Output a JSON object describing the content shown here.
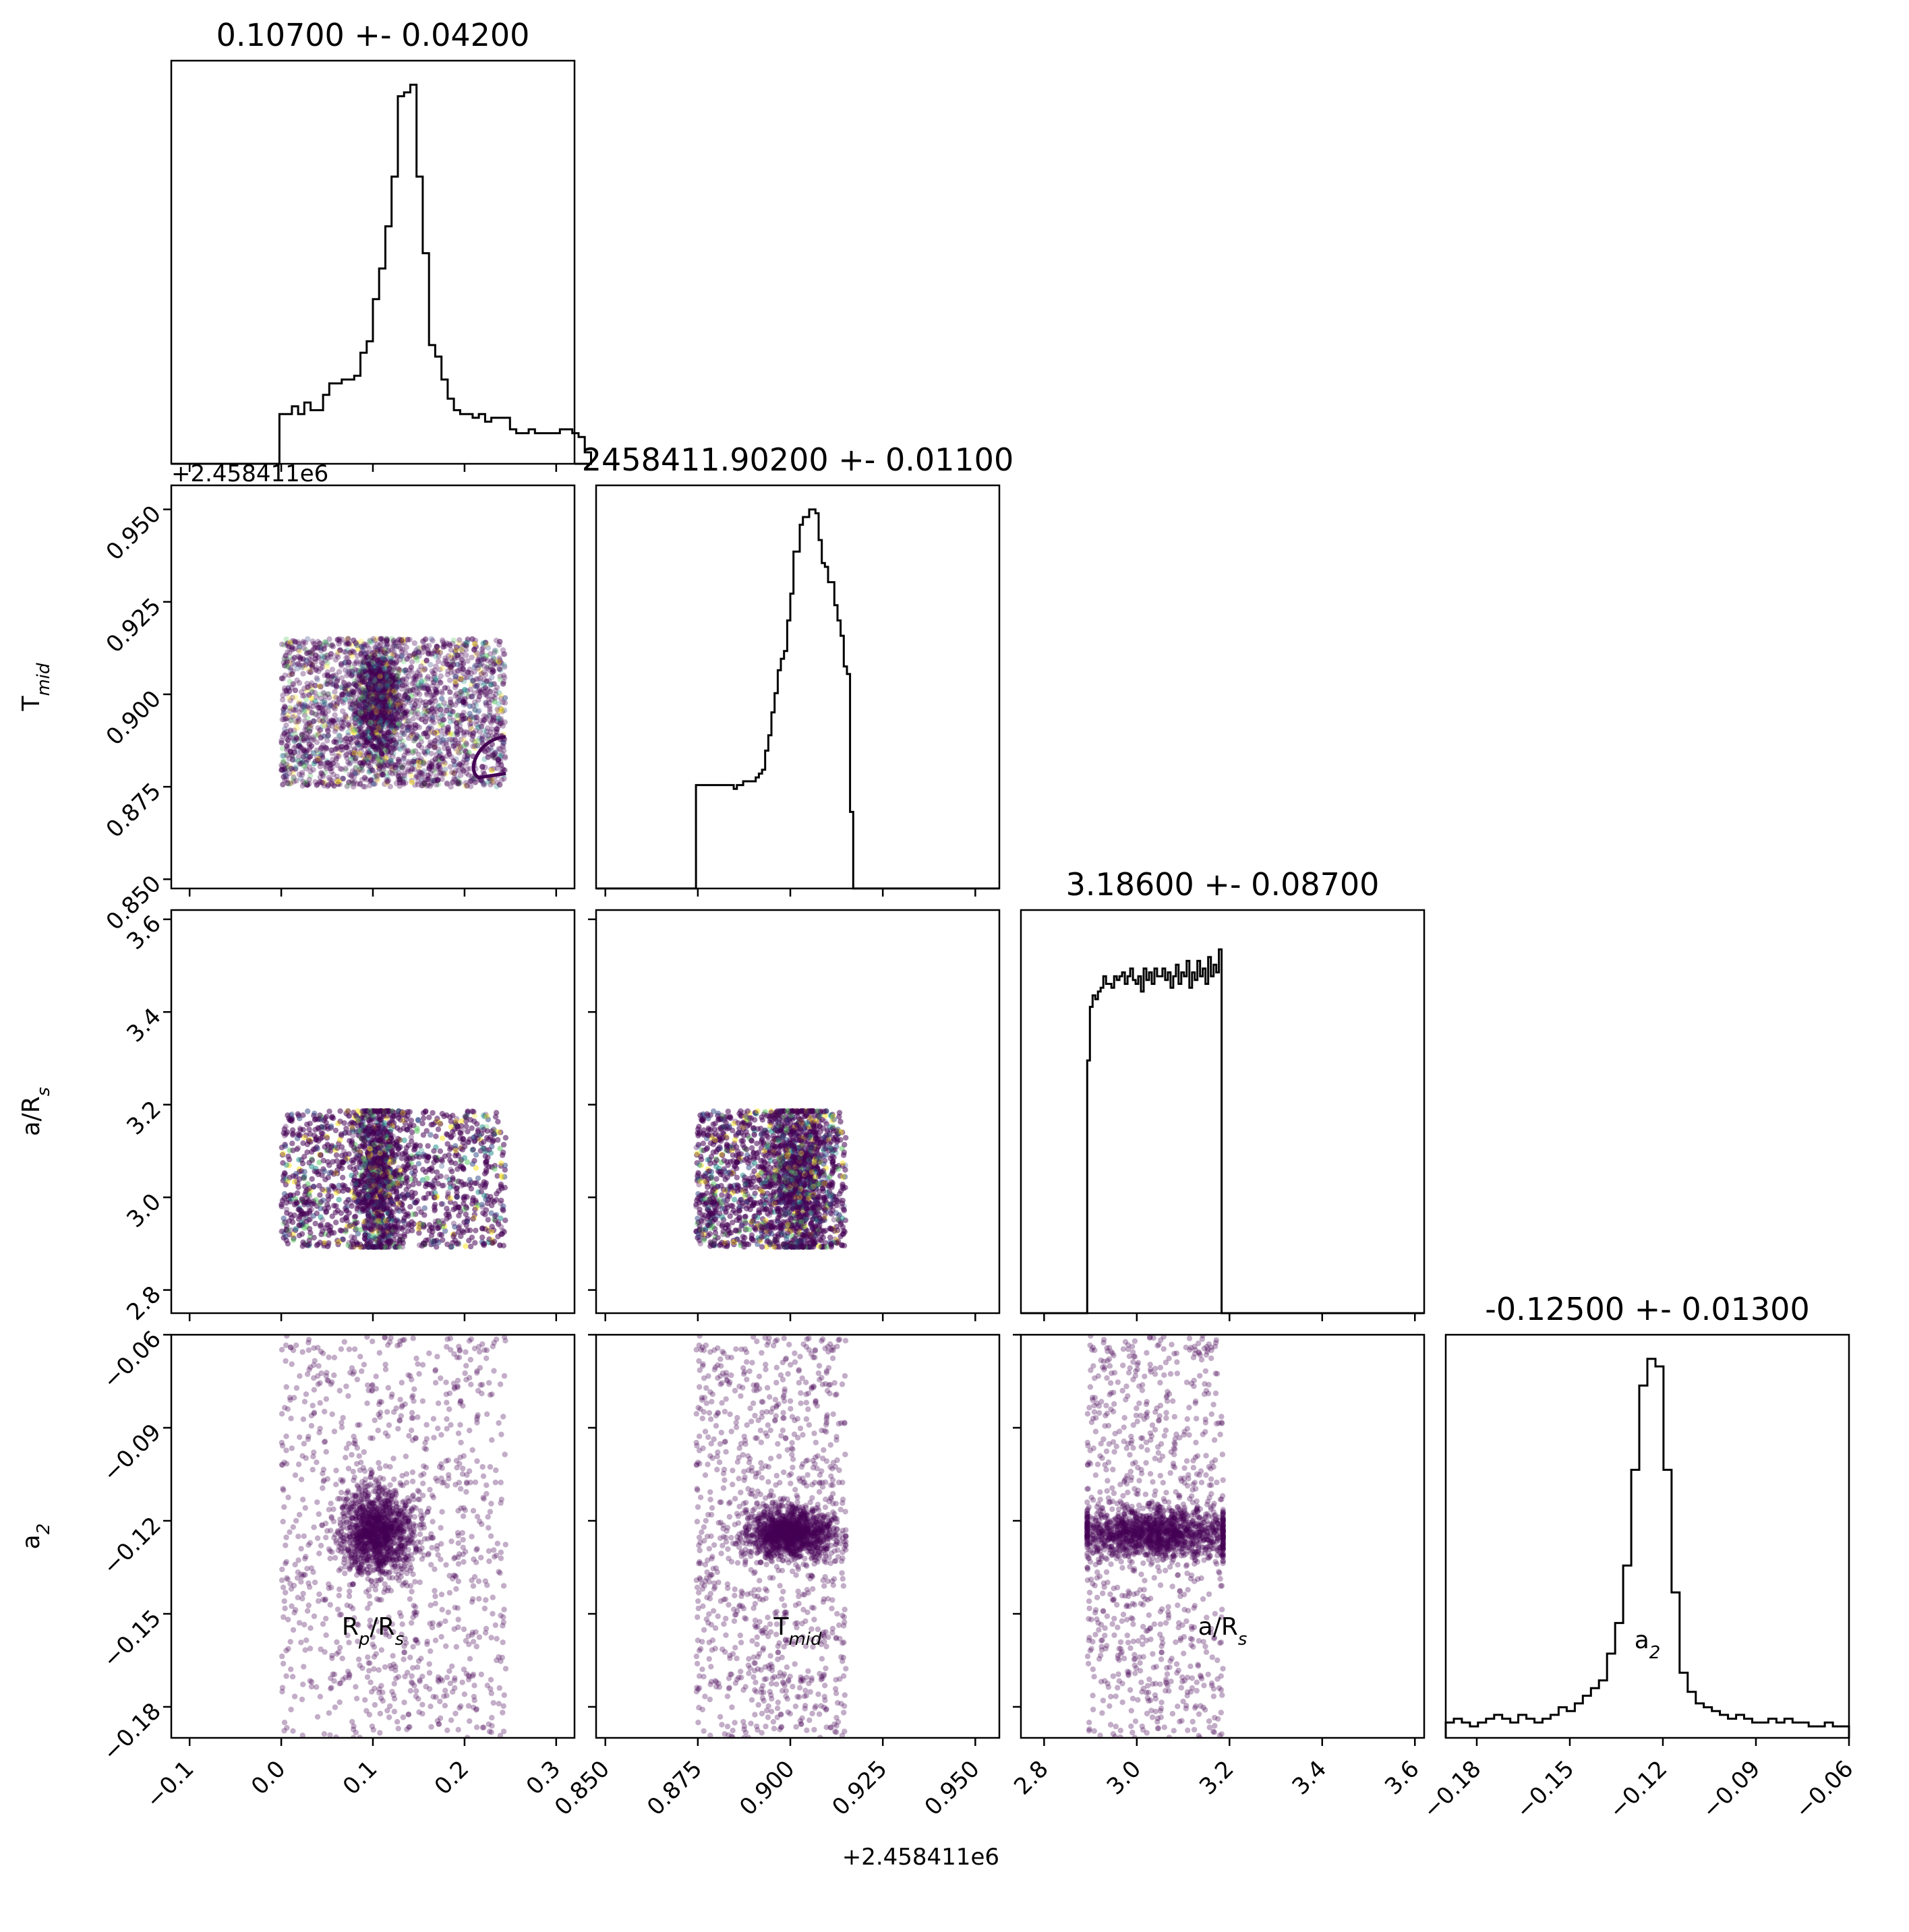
{
  "chart_data": {
    "type": "scatter",
    "subtype": "corner-plot",
    "parameters": [
      {
        "key": "rp",
        "label_main": "R",
        "label_sub1": "p",
        "label_mid": "/R",
        "label_sub2": "s",
        "range": [
          -0.12,
          0.32
        ],
        "ticks": [
          -0.1,
          0.0,
          0.1,
          0.2,
          0.3
        ],
        "tick_labels": [
          "−0.1",
          "0.0",
          "0.1",
          "0.2",
          "0.3"
        ],
        "title": "0.10700 +- 0.04200",
        "center": 0.107,
        "sigma": 0.042,
        "offset": ""
      },
      {
        "key": "tmid",
        "label_main": "T",
        "label_sub1": "mid",
        "label_mid": "",
        "label_sub2": "",
        "range": [
          0.8475,
          0.9565
        ],
        "ticks": [
          0.85,
          0.875,
          0.9,
          0.925,
          0.95
        ],
        "tick_labels": [
          "0.850",
          "0.875",
          "0.900",
          "0.925",
          "0.950"
        ],
        "title": "2458411.90200 +- 0.01100",
        "center": 0.902,
        "sigma": 0.011,
        "offset": "+2.458411e6"
      },
      {
        "key": "ars",
        "label_main": "a/R",
        "label_sub1": "s",
        "label_mid": "",
        "label_sub2": "",
        "range": [
          2.75,
          3.62
        ],
        "ticks": [
          2.8,
          3.0,
          3.2,
          3.4,
          3.6
        ],
        "tick_labels": [
          "2.8",
          "3.0",
          "3.2",
          "3.4",
          "3.6"
        ],
        "title": "3.18600 +- 0.08700",
        "center": 3.186,
        "sigma": 0.087,
        "offset": ""
      },
      {
        "key": "a2",
        "label_main": "a",
        "label_sub1": "2",
        "label_mid": "",
        "label_sub2": "",
        "range": [
          -0.19,
          -0.06
        ],
        "ticks": [
          -0.18,
          -0.15,
          -0.12,
          -0.09,
          -0.06
        ],
        "tick_labels": [
          "−0.18",
          "−0.15",
          "−0.12",
          "−0.09",
          "−0.06"
        ],
        "title": "-0.12500 +- 0.01300",
        "center": -0.125,
        "sigma": 0.013,
        "offset": ""
      }
    ],
    "histograms": [
      {
        "param": "rp",
        "edges_start": -0.002,
        "bin_width": 0.0068,
        "counts": [
          0.13,
          0.13,
          0.15,
          0.13,
          0.16,
          0.14,
          0.14,
          0.18,
          0.21,
          0.21,
          0.22,
          0.22,
          0.23,
          0.29,
          0.32,
          0.43,
          0.51,
          0.62,
          0.75,
          0.96,
          0.97,
          0.99,
          0.75,
          0.55,
          0.31,
          0.28,
          0.22,
          0.17,
          0.14,
          0.13,
          0.13,
          0.12,
          0.13,
          0.11,
          0.12,
          0.12,
          0.12,
          0.09,
          0.08,
          0.08,
          0.09,
          0.08,
          0.08,
          0.08,
          0.08,
          0.09,
          0.09,
          0.08,
          0.07,
          0.03
        ],
        "xlim": [
          -0.12,
          0.32
        ],
        "line_color": "#000000"
      },
      {
        "param": "tmid",
        "edges_start": 0.8745,
        "bin_width": 0.00085,
        "counts": [
          0.27,
          0.27,
          0.27,
          0.27,
          0.27,
          0.27,
          0.27,
          0.27,
          0.27,
          0.27,
          0.27,
          0.27,
          0.26,
          0.27,
          0.27,
          0.28,
          0.28,
          0.28,
          0.28,
          0.29,
          0.3,
          0.31,
          0.36,
          0.4,
          0.46,
          0.51,
          0.57,
          0.6,
          0.62,
          0.7,
          0.77,
          0.88,
          0.88,
          0.95,
          0.97,
          0.97,
          0.99,
          0.99,
          0.98,
          0.91,
          0.85,
          0.84,
          0.8,
          0.8,
          0.74,
          0.7,
          0.66,
          0.58,
          0.56,
          0.2
        ],
        "xlim": [
          0.8475,
          0.9565
        ],
        "line_color": "#000000"
      },
      {
        "param": "ars",
        "edges_start": 2.893,
        "bin_width": 0.0058,
        "counts": [
          0.66,
          0.8,
          0.83,
          0.82,
          0.84,
          0.85,
          0.88,
          0.86,
          0.86,
          0.85,
          0.88,
          0.87,
          0.88,
          0.89,
          0.86,
          0.88,
          0.9,
          0.87,
          0.86,
          0.88,
          0.84,
          0.9,
          0.87,
          0.89,
          0.86,
          0.9,
          0.88,
          0.88,
          0.9,
          0.87,
          0.89,
          0.85,
          0.88,
          0.91,
          0.86,
          0.89,
          0.88,
          0.92,
          0.85,
          0.89,
          0.87,
          0.92,
          0.88,
          0.9,
          0.86,
          0.93,
          0.88,
          0.91,
          0.89,
          0.95
        ],
        "xlim": [
          2.75,
          3.62
        ],
        "line_color": "#000000"
      },
      {
        "param": "a2",
        "edges_start": -0.19,
        "bin_width": 0.0026,
        "counts": [
          0.04,
          0.05,
          0.04,
          0.03,
          0.04,
          0.05,
          0.06,
          0.05,
          0.04,
          0.06,
          0.05,
          0.04,
          0.05,
          0.06,
          0.08,
          0.07,
          0.09,
          0.11,
          0.13,
          0.15,
          0.22,
          0.3,
          0.45,
          0.7,
          0.92,
          0.99,
          0.97,
          0.7,
          0.38,
          0.17,
          0.12,
          0.09,
          0.08,
          0.07,
          0.06,
          0.05,
          0.06,
          0.05,
          0.04,
          0.04,
          0.05,
          0.04,
          0.05,
          0.04,
          0.04,
          0.03,
          0.03,
          0.04,
          0.03,
          0.03
        ],
        "xlim": [
          -0.19,
          -0.06
        ],
        "line_color": "#000000"
      }
    ],
    "scatter_pairs": [
      {
        "x": "rp",
        "y": "tmid",
        "n_points": 4000,
        "x_extent": [
          0.0,
          0.245
        ],
        "y_extent": [
          0.875,
          0.915
        ],
        "core": [
          0.105,
          0.898,
          0.012,
          0.007
        ],
        "core_fraction": 0.35,
        "colors": [
          "#440154",
          "#3b528b",
          "#21918c",
          "#5ec962",
          "#fde725"
        ],
        "contour": true
      },
      {
        "x": "rp",
        "y": "ars",
        "n_points": 4000,
        "x_extent": [
          0.0,
          0.245
        ],
        "y_extent": [
          2.893,
          3.186
        ],
        "core": [
          0.105,
          3.04,
          0.012,
          0.09
        ],
        "core_fraction": 0.4,
        "colors": [
          "#440154",
          "#3b528b",
          "#21918c",
          "#5ec962",
          "#fde725"
        ],
        "contour": false
      },
      {
        "x": "tmid",
        "y": "ars",
        "n_points": 4000,
        "x_extent": [
          0.8745,
          0.915
        ],
        "y_extent": [
          2.893,
          3.186
        ],
        "core": [
          0.902,
          3.04,
          0.004,
          0.09
        ],
        "core_fraction": 0.4,
        "colors": [
          "#440154",
          "#3b528b",
          "#21918c",
          "#5ec962",
          "#fde725"
        ],
        "contour": false
      },
      {
        "x": "rp",
        "y": "a2",
        "n_points": 2200,
        "x_extent": [
          0.0,
          0.245
        ],
        "y_extent": [
          -0.19,
          -0.06
        ],
        "core": [
          0.105,
          -0.124,
          0.02,
          0.007
        ],
        "core_fraction": 0.55,
        "colors": [
          "#440154"
        ],
        "contour": false
      },
      {
        "x": "tmid",
        "y": "a2",
        "n_points": 2200,
        "x_extent": [
          0.8745,
          0.915
        ],
        "y_extent": [
          -0.19,
          -0.06
        ],
        "core": [
          0.9,
          -0.124,
          0.006,
          0.004
        ],
        "core_fraction": 0.55,
        "colors": [
          "#440154"
        ],
        "contour": false
      },
      {
        "x": "ars",
        "y": "a2",
        "n_points": 2200,
        "x_extent": [
          2.893,
          3.186
        ],
        "y_extent": [
          -0.19,
          -0.06
        ],
        "core": [
          3.04,
          -0.124,
          0.09,
          0.004
        ],
        "core_fraction": 0.6,
        "colors": [
          "#440154"
        ],
        "contour": false
      }
    ],
    "point_color": "#440154"
  }
}
